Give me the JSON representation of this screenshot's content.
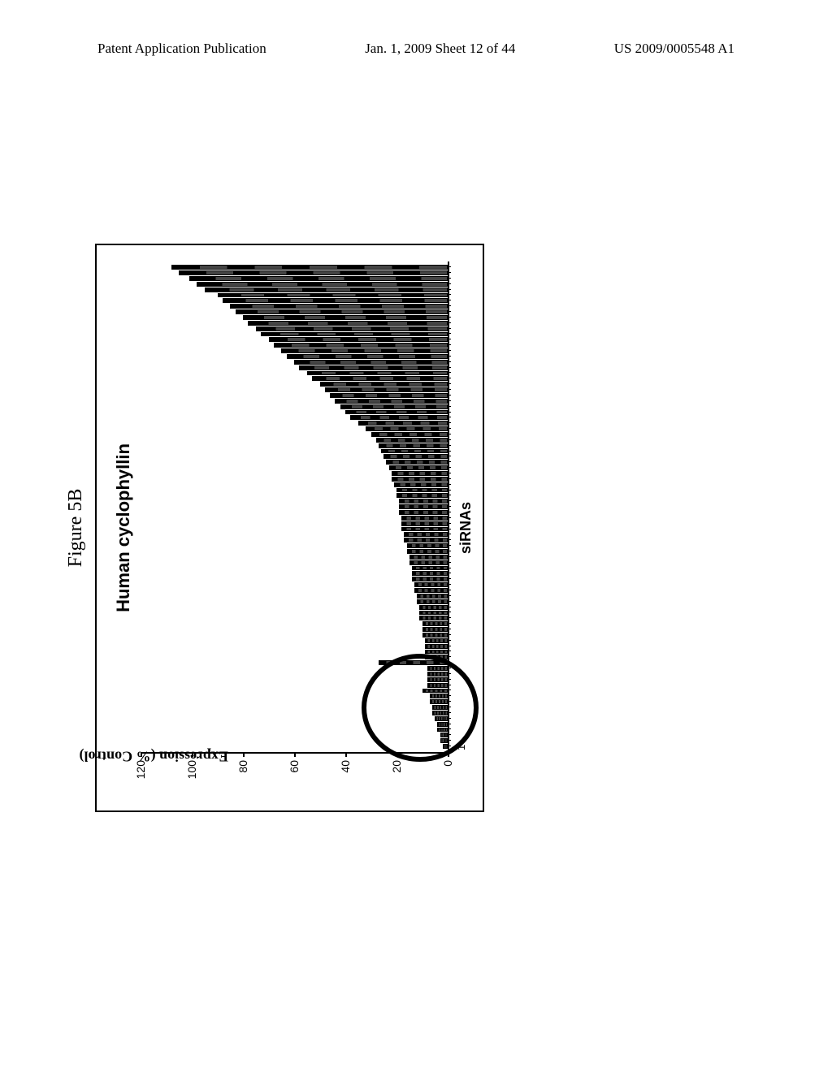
{
  "header": {
    "left": "Patent Application Publication",
    "center": "Jan. 1, 2009  Sheet 12 of 44",
    "right": "US 2009/0005548 A1"
  },
  "figure": {
    "label": "Figure 5B",
    "chart": {
      "type": "bar",
      "title": "Human cyclophyllin",
      "y_axis_label": "Expression (% Control)",
      "x_axis_label": "siRNAs",
      "ylim": [
        0,
        120
      ],
      "yticks": [
        0,
        20,
        40,
        60,
        80,
        100,
        120
      ],
      "x_first_label": "1",
      "values": [
        2,
        3,
        3,
        4,
        4,
        5,
        6,
        6,
        7,
        7,
        10,
        8,
        8,
        8,
        8,
        27,
        9,
        9,
        9,
        9,
        10,
        10,
        10,
        11,
        11,
        11,
        12,
        12,
        13,
        13,
        14,
        14,
        14,
        15,
        15,
        16,
        16,
        17,
        17,
        18,
        18,
        18,
        19,
        19,
        19,
        20,
        20,
        21,
        22,
        22,
        23,
        24,
        25,
        26,
        27,
        28,
        30,
        32,
        35,
        38,
        40,
        42,
        44,
        46,
        48,
        50,
        53,
        55,
        58,
        60,
        63,
        65,
        68,
        70,
        73,
        75,
        78,
        80,
        83,
        85,
        88,
        90,
        95,
        98,
        101,
        105,
        108
      ],
      "bar_color": "#000000",
      "background_color": "#ffffff",
      "border_color": "#000000",
      "title_fontsize": 22,
      "label_fontsize": 18,
      "tick_fontsize": 14,
      "circle": {
        "left_pct": -2,
        "bottom_pct": -10,
        "width_pct": 22,
        "height_pct": 38
      }
    }
  }
}
